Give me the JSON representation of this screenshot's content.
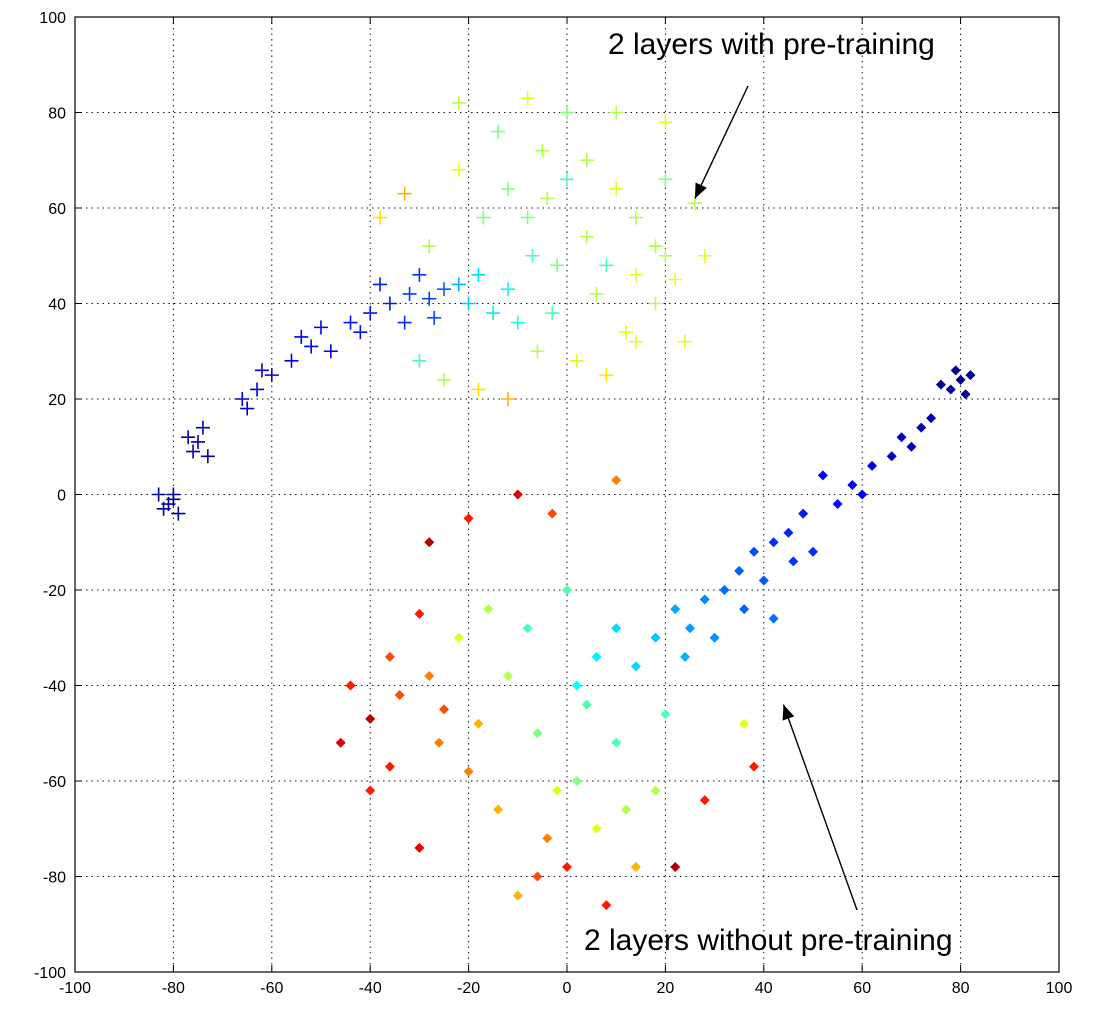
{
  "chart_data": {
    "type": "scatter",
    "title": "",
    "xlabel": "",
    "ylabel": "",
    "xlim": [
      -100,
      100
    ],
    "ylim": [
      -100,
      100
    ],
    "grid": true,
    "xticks": [
      -100,
      -80,
      -60,
      -40,
      -20,
      0,
      20,
      40,
      60,
      80,
      100
    ],
    "yticks": [
      -100,
      -80,
      -60,
      -40,
      -20,
      0,
      20,
      40,
      60,
      80,
      100
    ],
    "colormap": "jet",
    "series": [
      {
        "marker": "plus",
        "points": [
          [
            -81,
            -2,
            0.02
          ],
          [
            -82,
            -3,
            0.02
          ],
          [
            -80,
            0,
            0.02
          ],
          [
            -79,
            -4,
            0.02
          ],
          [
            -83,
            0,
            0.02
          ],
          [
            -80,
            -1,
            0.02
          ],
          [
            -76,
            9,
            0.05
          ],
          [
            -75,
            11,
            0.05
          ],
          [
            -73,
            8,
            0.05
          ],
          [
            -77,
            12,
            0.05
          ],
          [
            -74,
            14,
            0.05
          ],
          [
            -66,
            20,
            0.08
          ],
          [
            -63,
            22,
            0.08
          ],
          [
            -60,
            25,
            0.08
          ],
          [
            -65,
            18,
            0.08
          ],
          [
            -62,
            26,
            0.08
          ],
          [
            -56,
            28,
            0.11
          ],
          [
            -52,
            31,
            0.11
          ],
          [
            -50,
            35,
            0.11
          ],
          [
            -48,
            30,
            0.12
          ],
          [
            -54,
            33,
            0.12
          ],
          [
            -44,
            36,
            0.14
          ],
          [
            -40,
            38,
            0.14
          ],
          [
            -36,
            40,
            0.15
          ],
          [
            -42,
            34,
            0.14
          ],
          [
            -38,
            44,
            0.15
          ],
          [
            -32,
            42,
            0.18
          ],
          [
            -30,
            46,
            0.18
          ],
          [
            -28,
            41,
            0.19
          ],
          [
            -27,
            37,
            0.2
          ],
          [
            -25,
            43,
            0.22
          ],
          [
            -33,
            36,
            0.17
          ],
          [
            -22,
            44,
            0.3
          ],
          [
            -20,
            40,
            0.32
          ],
          [
            -18,
            46,
            0.34
          ],
          [
            -15,
            38,
            0.36
          ],
          [
            -12,
            43,
            0.38
          ],
          [
            -10,
            36,
            0.4
          ],
          [
            -30,
            28,
            0.45
          ],
          [
            -25,
            24,
            0.55
          ],
          [
            -18,
            22,
            0.65
          ],
          [
            -12,
            20,
            0.7
          ],
          [
            -38,
            58,
            0.65
          ],
          [
            -33,
            63,
            0.7
          ],
          [
            -28,
            52,
            0.55
          ],
          [
            -22,
            68,
            0.6
          ],
          [
            -17,
            58,
            0.5
          ],
          [
            -22,
            82,
            0.55
          ],
          [
            -14,
            76,
            0.5
          ],
          [
            -8,
            83,
            0.6
          ],
          [
            -5,
            72,
            0.55
          ],
          [
            0,
            80,
            0.5
          ],
          [
            4,
            70,
            0.55
          ],
          [
            10,
            64,
            0.6
          ],
          [
            14,
            58,
            0.55
          ],
          [
            20,
            66,
            0.5
          ],
          [
            26,
            61,
            0.55
          ],
          [
            28,
            50,
            0.6
          ],
          [
            20,
            50,
            0.55
          ],
          [
            14,
            46,
            0.6
          ],
          [
            18,
            40,
            0.55
          ],
          [
            12,
            34,
            0.6
          ],
          [
            6,
            42,
            0.55
          ],
          [
            2,
            28,
            0.6
          ],
          [
            8,
            25,
            0.65
          ],
          [
            14,
            32,
            0.6
          ],
          [
            -6,
            30,
            0.55
          ],
          [
            -2,
            48,
            0.5
          ],
          [
            4,
            54,
            0.55
          ],
          [
            -8,
            58,
            0.5
          ],
          [
            -12,
            64,
            0.5
          ],
          [
            -4,
            62,
            0.55
          ],
          [
            10,
            80,
            0.55
          ],
          [
            18,
            52,
            0.55
          ],
          [
            22,
            45,
            0.6
          ],
          [
            -3,
            38,
            0.45
          ],
          [
            -7,
            50,
            0.45
          ],
          [
            8,
            48,
            0.45
          ],
          [
            0,
            66,
            0.45
          ],
          [
            24,
            32,
            0.6
          ],
          [
            20,
            78,
            0.6
          ]
        ]
      },
      {
        "marker": "diamond",
        "points": [
          [
            80,
            24,
            0.02
          ],
          [
            78,
            22,
            0.02
          ],
          [
            82,
            25,
            0.02
          ],
          [
            79,
            26,
            0.02
          ],
          [
            76,
            23,
            0.02
          ],
          [
            81,
            21,
            0.02
          ],
          [
            72,
            14,
            0.05
          ],
          [
            70,
            10,
            0.06
          ],
          [
            66,
            8,
            0.07
          ],
          [
            74,
            16,
            0.05
          ],
          [
            68,
            12,
            0.06
          ],
          [
            62,
            6,
            0.1
          ],
          [
            58,
            2,
            0.12
          ],
          [
            55,
            -2,
            0.13
          ],
          [
            60,
            0,
            0.11
          ],
          [
            52,
            4,
            0.12
          ],
          [
            48,
            -4,
            0.15
          ],
          [
            45,
            -8,
            0.16
          ],
          [
            42,
            -10,
            0.17
          ],
          [
            50,
            -12,
            0.17
          ],
          [
            46,
            -14,
            0.18
          ],
          [
            38,
            -12,
            0.2
          ],
          [
            35,
            -16,
            0.22
          ],
          [
            32,
            -20,
            0.23
          ],
          [
            40,
            -18,
            0.21
          ],
          [
            36,
            -24,
            0.22
          ],
          [
            42,
            -26,
            0.24
          ],
          [
            28,
            -22,
            0.26
          ],
          [
            25,
            -28,
            0.28
          ],
          [
            22,
            -24,
            0.29
          ],
          [
            30,
            -30,
            0.27
          ],
          [
            24,
            -34,
            0.3
          ],
          [
            18,
            -30,
            0.32
          ],
          [
            14,
            -36,
            0.34
          ],
          [
            10,
            -28,
            0.34
          ],
          [
            6,
            -34,
            0.36
          ],
          [
            2,
            -40,
            0.38
          ],
          [
            10,
            3,
            0.75
          ],
          [
            -10,
            0,
            0.9
          ],
          [
            -20,
            -5,
            0.85
          ],
          [
            -28,
            -10,
            0.95
          ],
          [
            -3,
            -4,
            0.8
          ],
          [
            -46,
            -52,
            0.9
          ],
          [
            -40,
            -47,
            0.95
          ],
          [
            -36,
            -57,
            0.85
          ],
          [
            -30,
            -74,
            0.9
          ],
          [
            -40,
            -62,
            0.85
          ],
          [
            -30,
            -25,
            0.85
          ],
          [
            -25,
            -45,
            0.8
          ],
          [
            -20,
            -58,
            0.75
          ],
          [
            -14,
            -66,
            0.7
          ],
          [
            -6,
            -80,
            0.8
          ],
          [
            -4,
            -72,
            0.75
          ],
          [
            -10,
            -84,
            0.7
          ],
          [
            0,
            -78,
            0.85
          ],
          [
            8,
            -86,
            0.85
          ],
          [
            14,
            -78,
            0.7
          ],
          [
            22,
            -78,
            0.95
          ],
          [
            28,
            -64,
            0.85
          ],
          [
            38,
            -57,
            0.85
          ],
          [
            36,
            -48,
            0.6
          ],
          [
            -22,
            -30,
            0.6
          ],
          [
            -12,
            -38,
            0.55
          ],
          [
            -6,
            -50,
            0.5
          ],
          [
            2,
            -60,
            0.5
          ],
          [
            10,
            -52,
            0.45
          ],
          [
            -16,
            -24,
            0.55
          ],
          [
            -28,
            -38,
            0.75
          ],
          [
            -34,
            -42,
            0.8
          ],
          [
            -18,
            -48,
            0.7
          ],
          [
            -26,
            -52,
            0.75
          ],
          [
            18,
            -62,
            0.55
          ],
          [
            6,
            -70,
            0.6
          ],
          [
            -2,
            -62,
            0.6
          ],
          [
            12,
            -66,
            0.55
          ],
          [
            20,
            -46,
            0.45
          ],
          [
            -8,
            -28,
            0.45
          ],
          [
            0,
            -20,
            0.45
          ],
          [
            4,
            -44,
            0.45
          ],
          [
            -36,
            -34,
            0.8
          ],
          [
            -44,
            -40,
            0.85
          ]
        ]
      }
    ],
    "annotations": [
      {
        "text": "2 layers with pre-training",
        "arrow_to": [
          26,
          62
        ]
      },
      {
        "text": "2 layers without pre-training",
        "arrow_to": [
          44,
          -44
        ]
      }
    ]
  }
}
